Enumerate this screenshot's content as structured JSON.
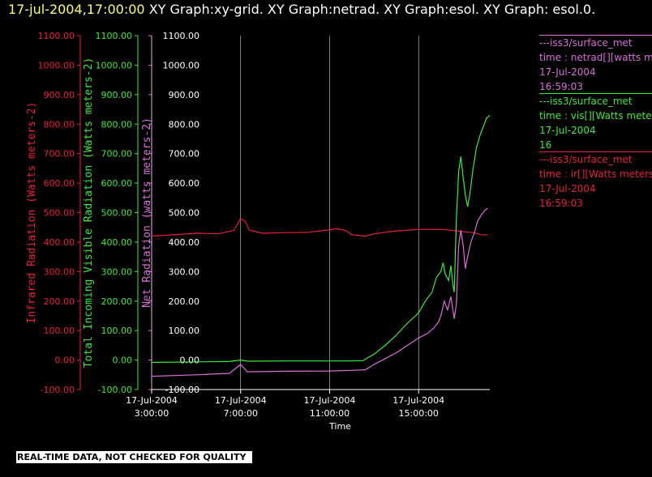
{
  "header": {
    "time": "17-jul-2004,17:00:00",
    "text": " XY Graph:xy-grid.  XY Graph:netrad.  XY Graph:esol.  XY Graph: esol.0."
  },
  "banner": "REAL-TIME DATA, NOT CHECKED FOR QUALITY",
  "colors": {
    "ir": "#e8203a",
    "vis": "#3ee83e",
    "net": "#d86ed8",
    "grid": "#ffffff",
    "axis_text": "#ffffff"
  },
  "legend": [
    {
      "source": "---iss3/surface_met",
      "variable": "time : netrad[][watts meters",
      "date": "17-Jul-2004",
      "time": "16:59:03"
    },
    {
      "source": "---iss3/surface_met",
      "variable": "time : vis[][Watts meters",
      "date": "17-Jul-2004",
      "time": "16"
    },
    {
      "source": "---iss3/surface_met",
      "variable": "time : ir[][Watts meters",
      "date": "17-Jul-2004",
      "time": "16:59:03"
    }
  ],
  "chart_data": {
    "type": "line",
    "xlabel": "Time",
    "x_ticks": [
      {
        "value": 3,
        "date": "17-Jul-2004",
        "time": "3:00:00"
      },
      {
        "value": 7,
        "date": "17-Jul-2004",
        "time": "7:00:00"
      },
      {
        "value": 11,
        "date": "17-Jul-2004",
        "time": "11:00:00"
      },
      {
        "value": 15,
        "date": "17-Jul-2004",
        "time": "15:00:00"
      }
    ],
    "xlim": [
      3,
      18.2
    ],
    "grid": "vertical lines at x ticks",
    "y_axes": [
      {
        "id": "ir",
        "label": "Infrared Radiation (Watts meters-2)",
        "ylim": [
          -100,
          1100
        ],
        "ticks": [
          "-100.00",
          "0.00",
          "100.00",
          "200.00",
          "300.00",
          "400.00",
          "500.00",
          "600.00",
          "700.00",
          "800.00",
          "900.00",
          "1000.00",
          "1100.00"
        ]
      },
      {
        "id": "vis",
        "label": "Total Incoming Visible Radiation (Watts meters-2)",
        "ylim": [
          -100,
          1100
        ],
        "ticks": [
          "-100.00",
          "0.00",
          "100.00",
          "200.00",
          "300.00",
          "400.00",
          "500.00",
          "600.00",
          "700.00",
          "800.00",
          "900.00",
          "1000.00",
          "1100.00"
        ]
      },
      {
        "id": "net",
        "label": "Net Radiation (watts meters-2)",
        "ylim": [
          -100,
          1100
        ],
        "ticks": [
          "-100.00",
          "0.00",
          "100.00",
          "200.00",
          "300.00",
          "400.00",
          "500.00",
          "600.00",
          "700.00",
          "800.00",
          "900.00",
          "1000.00",
          "1100.00"
        ]
      }
    ],
    "series": [
      {
        "axis": "ir",
        "color": "#e8203a",
        "points": [
          [
            3,
            420
          ],
          [
            4,
            425
          ],
          [
            5,
            430
          ],
          [
            6,
            428
          ],
          [
            6.7,
            440
          ],
          [
            7,
            480
          ],
          [
            7.2,
            470
          ],
          [
            7.4,
            440
          ],
          [
            8,
            430
          ],
          [
            9,
            432
          ],
          [
            10,
            433
          ],
          [
            10.8,
            440
          ],
          [
            11.3,
            445
          ],
          [
            11.7,
            440
          ],
          [
            12,
            425
          ],
          [
            12.6,
            420
          ],
          [
            13,
            428
          ],
          [
            14,
            438
          ],
          [
            15,
            443
          ],
          [
            16,
            443
          ],
          [
            16.5,
            440
          ],
          [
            17,
            435
          ],
          [
            17.5,
            432
          ],
          [
            17.8,
            425
          ],
          [
            18.1,
            424
          ]
        ]
      },
      {
        "axis": "vis",
        "color": "#3ee83e",
        "points": [
          [
            3,
            -8
          ],
          [
            5,
            -6
          ],
          [
            6.5,
            -5
          ],
          [
            7,
            0
          ],
          [
            7.3,
            -4
          ],
          [
            9,
            -3
          ],
          [
            11,
            -3
          ],
          [
            12,
            -3
          ],
          [
            12.5,
            -2
          ],
          [
            13,
            20
          ],
          [
            13.5,
            50
          ],
          [
            14,
            85
          ],
          [
            14.5,
            125
          ],
          [
            15,
            160
          ],
          [
            15.3,
            200
          ],
          [
            15.6,
            230
          ],
          [
            15.8,
            280
          ],
          [
            16,
            300
          ],
          [
            16.1,
            330
          ],
          [
            16.2,
            290
          ],
          [
            16.35,
            270
          ],
          [
            16.45,
            320
          ],
          [
            16.55,
            250
          ],
          [
            16.6,
            230
          ],
          [
            16.7,
            480
          ],
          [
            16.8,
            640
          ],
          [
            16.9,
            690
          ],
          [
            17,
            620
          ],
          [
            17.1,
            560
          ],
          [
            17.2,
            520
          ],
          [
            17.3,
            560
          ],
          [
            17.45,
            650
          ],
          [
            17.6,
            720
          ],
          [
            17.75,
            760
          ],
          [
            17.9,
            790
          ],
          [
            18.05,
            820
          ],
          [
            18.2,
            830
          ]
        ]
      },
      {
        "axis": "net",
        "color": "#d86ed8",
        "points": [
          [
            3,
            -55
          ],
          [
            5,
            -50
          ],
          [
            6.5,
            -45
          ],
          [
            7,
            -15
          ],
          [
            7.3,
            -40
          ],
          [
            9,
            -38
          ],
          [
            11,
            -37
          ],
          [
            12,
            -35
          ],
          [
            12.6,
            -33
          ],
          [
            13,
            -15
          ],
          [
            13.5,
            5
          ],
          [
            14,
            25
          ],
          [
            14.5,
            50
          ],
          [
            15,
            75
          ],
          [
            15.4,
            90
          ],
          [
            15.7,
            110
          ],
          [
            15.9,
            130
          ],
          [
            16,
            150
          ],
          [
            16.15,
            200
          ],
          [
            16.3,
            170
          ],
          [
            16.45,
            215
          ],
          [
            16.6,
            140
          ],
          [
            16.7,
            190
          ],
          [
            16.8,
            390
          ],
          [
            16.9,
            440
          ],
          [
            17,
            390
          ],
          [
            17.1,
            310
          ],
          [
            17.2,
            350
          ],
          [
            17.35,
            400
          ],
          [
            17.5,
            430
          ],
          [
            17.65,
            470
          ],
          [
            17.8,
            490
          ],
          [
            17.95,
            505
          ],
          [
            18.1,
            515
          ]
        ]
      }
    ]
  }
}
